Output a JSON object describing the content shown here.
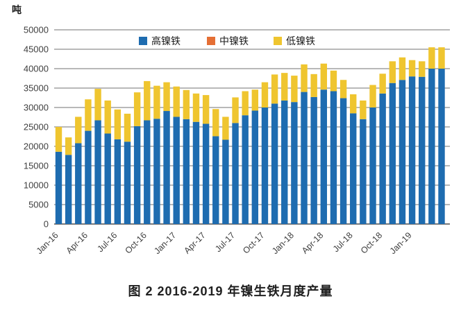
{
  "figure": {
    "caption": "图 2  2016-2019 年镍生铁月度产量"
  },
  "chart_data": {
    "type": "bar",
    "stacked": true,
    "title": "",
    "xlabel": "",
    "ylabel": "吨",
    "ylim": [
      0,
      50000
    ],
    "ytick_step": 5000,
    "ytick_labels": [
      "0",
      "5000",
      "10000",
      "15000",
      "20000",
      "25000",
      "30000",
      "35000",
      "40000",
      "45000",
      "50000"
    ],
    "grid": true,
    "legend_position": "top-center",
    "xtick_every": 3,
    "xtick_labels": [
      "Jan-16",
      "Apr-16",
      "Jul-16",
      "Oct-16",
      "Jan-17",
      "Apr-17",
      "Jul-17",
      "Oct-17",
      "Jan-18",
      "Apr-18",
      "Jul-18",
      "Oct-18",
      "Jan-19"
    ],
    "categories": [
      "Jan-16",
      "Feb-16",
      "Mar-16",
      "Apr-16",
      "May-16",
      "Jun-16",
      "Jul-16",
      "Aug-16",
      "Sep-16",
      "Oct-16",
      "Nov-16",
      "Dec-16",
      "Jan-17",
      "Feb-17",
      "Mar-17",
      "Apr-17",
      "May-17",
      "Jun-17",
      "Jul-17",
      "Aug-17",
      "Sep-17",
      "Oct-17",
      "Nov-17",
      "Dec-17",
      "Jan-18",
      "Feb-18",
      "Mar-18",
      "Apr-18",
      "May-18",
      "Jun-18",
      "Jul-18",
      "Aug-18",
      "Sep-18",
      "Oct-18",
      "Nov-18",
      "Dec-18",
      "Jan-19",
      "Feb-19",
      "Mar-19",
      "Apr-19"
    ],
    "series": [
      {
        "name": "高镍铁",
        "color": "#1e6cb0",
        "values": [
          18600,
          17800,
          20800,
          24000,
          26700,
          23300,
          21800,
          21200,
          25200,
          26700,
          27100,
          29100,
          27600,
          27000,
          26300,
          25800,
          22600,
          21700,
          26000,
          28000,
          29200,
          30000,
          31000,
          31800,
          31400,
          34000,
          32700,
          34600,
          34200,
          32400,
          28500,
          27000,
          30000,
          33600,
          36300,
          37100,
          38000,
          37900,
          40000,
          40000
        ]
      },
      {
        "name": "中镍铁",
        "color": "#e56f35",
        "values": [
          0,
          0,
          0,
          0,
          0,
          0,
          0,
          0,
          0,
          0,
          0,
          0,
          0,
          0,
          0,
          0,
          0,
          0,
          0,
          0,
          0,
          0,
          0,
          0,
          0,
          0,
          0,
          0,
          0,
          0,
          0,
          0,
          0,
          0,
          0,
          0,
          0,
          0,
          0,
          0
        ]
      },
      {
        "name": "低镍铁",
        "color": "#efc52f",
        "values": [
          6400,
          4500,
          6800,
          8100,
          8100,
          8500,
          7700,
          7200,
          8700,
          10100,
          8500,
          7400,
          7800,
          7500,
          7300,
          7400,
          7000,
          5900,
          6600,
          6200,
          5400,
          6500,
          7500,
          7100,
          6800,
          7100,
          5900,
          6700,
          5300,
          4700,
          4900,
          4800,
          5800,
          5100,
          5600,
          5800,
          4200,
          4000,
          5500,
          5500
        ]
      }
    ],
    "axis_color": "#4d4d4d",
    "grid_color": "#707070",
    "tick_text_color": "#3f3f3f"
  }
}
